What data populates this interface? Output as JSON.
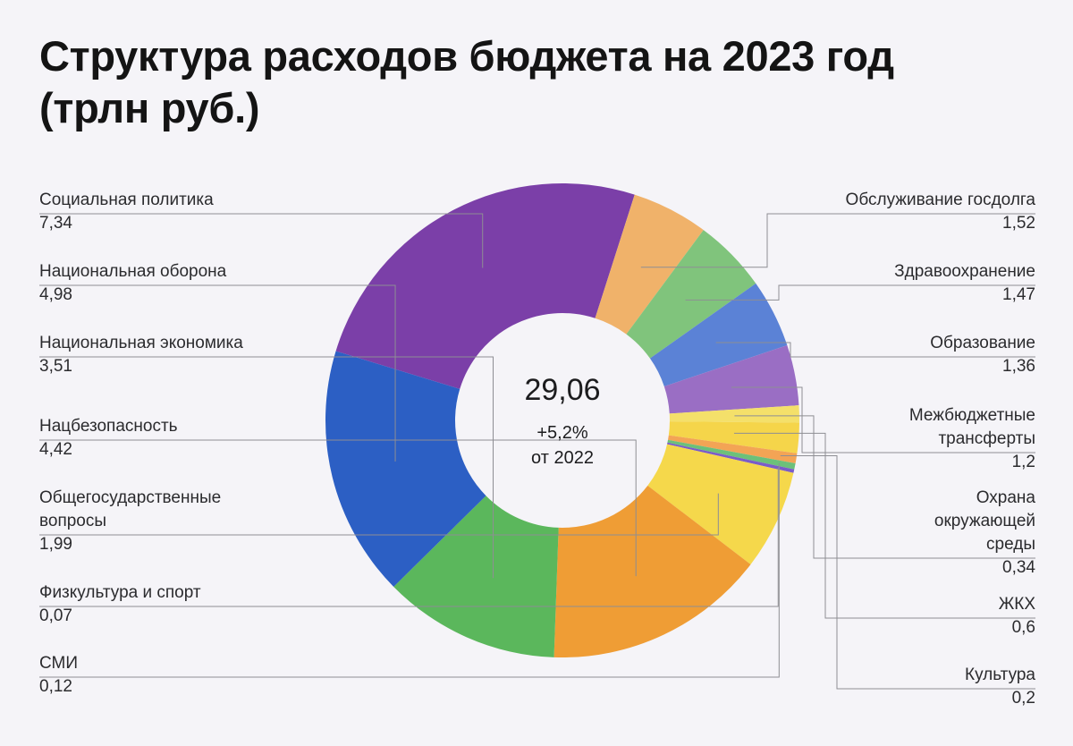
{
  "title": {
    "line1": "Структура расходов бюджета на 2023 год",
    "line2": "(трлн руб.)"
  },
  "chart_data": {
    "type": "pie",
    "title": "Структура расходов бюджета на 2023 год (трлн руб.)",
    "center": {
      "total": "29,06",
      "change": "+5,2%",
      "comparison": "от 2022"
    },
    "categories": [
      "Социальная политика",
      "Обслуживание госдолга",
      "Здравоохранение",
      "Образование",
      "Межбюджетные трансферты",
      "Охрана окружающей среды",
      "ЖКХ",
      "Культура",
      "СМИ",
      "Физкультура и спорт",
      "Общегосударственные вопросы",
      "Нацбезопасность",
      "Национальная экономика",
      "Национальная оборона"
    ],
    "values": [
      7.34,
      1.52,
      1.47,
      1.36,
      1.2,
      0.34,
      0.6,
      0.2,
      0.12,
      0.07,
      1.99,
      4.42,
      3.51,
      4.98
    ],
    "value_labels": [
      "7,34",
      "1,52",
      "1,47",
      "1,36",
      "1,2",
      "0,34",
      "0,6",
      "0,2",
      "0,12",
      "0,07",
      "1,99",
      "4,42",
      "3,51",
      "4,98"
    ],
    "colors": [
      "#7b3fa8",
      "#f0b26a",
      "#80c47c",
      "#5b82d6",
      "#9a6ec4",
      "#f4e06a",
      "#f5d54a",
      "#f3a455",
      "#6cc07a",
      "#7a5cc8",
      "#f5d84b",
      "#ef9d35",
      "#5bb75c",
      "#2c5fc4"
    ],
    "left_labels": [
      {
        "index": 0,
        "lines": [
          "Социальная политика"
        ]
      },
      {
        "index": 13,
        "lines": [
          "Национальная оборона"
        ]
      },
      {
        "index": 12,
        "lines": [
          "Национальная экономика"
        ]
      },
      {
        "index": 11,
        "lines": [
          "Нацбезопасность"
        ]
      },
      {
        "index": 10,
        "lines": [
          "Общегосударственные",
          "вопросы"
        ]
      },
      {
        "index": 9,
        "lines": [
          "Физкультура и спорт"
        ]
      },
      {
        "index": 8,
        "lines": [
          "СМИ"
        ]
      }
    ],
    "right_labels": [
      {
        "index": 1,
        "lines": [
          "Обслуживание госдолга"
        ]
      },
      {
        "index": 2,
        "lines": [
          "Здравоохранение"
        ]
      },
      {
        "index": 3,
        "lines": [
          "Образование"
        ]
      },
      {
        "index": 4,
        "lines": [
          "Межбюджетные",
          "трансферты"
        ]
      },
      {
        "index": 5,
        "lines": [
          "Охрана",
          "окружающей",
          "среды"
        ]
      },
      {
        "index": 6,
        "lines": [
          "ЖКХ"
        ]
      },
      {
        "index": 7,
        "lines": [
          "Культура"
        ]
      }
    ]
  }
}
